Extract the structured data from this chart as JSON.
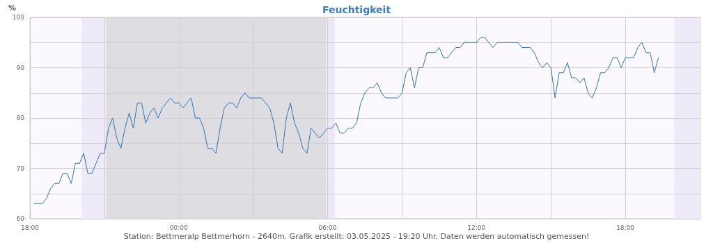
{
  "chart_data": {
    "type": "line",
    "title": "Feuchtigkeit",
    "ylabel": "%",
    "annotations": [
      "Station: Bettmeralp Bettmerhorn - 2640m. Grafik erstellt: 03.05.2025 - 19:20 Uhr. Daten werden automatisch gemessen!"
    ],
    "x": [
      "2025-05-02T18:10",
      "2025-05-02T18:20",
      "2025-05-02T18:30",
      "2025-05-02T18:40",
      "2025-05-02T18:50",
      "2025-05-02T19:00",
      "2025-05-02T19:10",
      "2025-05-02T19:20",
      "2025-05-02T19:30",
      "2025-05-02T19:40",
      "2025-05-02T19:50",
      "2025-05-02T20:00",
      "2025-05-02T20:10",
      "2025-05-02T20:20",
      "2025-05-02T20:30",
      "2025-05-02T20:40",
      "2025-05-02T20:50",
      "2025-05-02T21:00",
      "2025-05-02T21:10",
      "2025-05-02T21:20",
      "2025-05-02T21:30",
      "2025-05-02T21:40",
      "2025-05-02T21:50",
      "2025-05-02T22:00",
      "2025-05-02T22:10",
      "2025-05-02T22:20",
      "2025-05-02T22:30",
      "2025-05-02T22:40",
      "2025-05-02T22:50",
      "2025-05-02T23:00",
      "2025-05-02T23:10",
      "2025-05-02T23:20",
      "2025-05-02T23:30",
      "2025-05-02T23:40",
      "2025-05-02T23:50",
      "2025-05-03T00:00",
      "2025-05-03T00:10",
      "2025-05-03T00:20",
      "2025-05-03T00:30",
      "2025-05-03T00:40",
      "2025-05-03T00:50",
      "2025-05-03T01:00",
      "2025-05-03T01:10",
      "2025-05-03T01:20",
      "2025-05-03T01:30",
      "2025-05-03T01:40",
      "2025-05-03T01:50",
      "2025-05-03T02:00",
      "2025-05-03T02:10",
      "2025-05-03T02:20",
      "2025-05-03T02:30",
      "2025-05-03T02:40",
      "2025-05-03T02:50",
      "2025-05-03T03:00",
      "2025-05-03T03:10",
      "2025-05-03T03:20",
      "2025-05-03T03:30",
      "2025-05-03T03:40",
      "2025-05-03T03:50",
      "2025-05-03T04:00",
      "2025-05-03T04:10",
      "2025-05-03T04:20",
      "2025-05-03T04:30",
      "2025-05-03T04:40",
      "2025-05-03T04:50",
      "2025-05-03T05:00",
      "2025-05-03T05:10",
      "2025-05-03T05:20",
      "2025-05-03T05:30",
      "2025-05-03T05:40",
      "2025-05-03T05:50",
      "2025-05-03T06:00",
      "2025-05-03T06:10",
      "2025-05-03T06:20",
      "2025-05-03T06:30",
      "2025-05-03T06:40",
      "2025-05-03T06:50",
      "2025-05-03T07:00",
      "2025-05-03T07:10",
      "2025-05-03T07:20",
      "2025-05-03T07:30",
      "2025-05-03T07:40",
      "2025-05-03T07:50",
      "2025-05-03T08:00",
      "2025-05-03T08:10",
      "2025-05-03T08:20",
      "2025-05-03T08:30",
      "2025-05-03T08:40",
      "2025-05-03T08:50",
      "2025-05-03T09:00",
      "2025-05-03T09:10",
      "2025-05-03T09:20",
      "2025-05-03T09:30",
      "2025-05-03T09:40",
      "2025-05-03T09:50",
      "2025-05-03T10:00",
      "2025-05-03T10:10",
      "2025-05-03T10:20",
      "2025-05-03T10:30",
      "2025-05-03T10:40",
      "2025-05-03T10:50",
      "2025-05-03T11:00",
      "2025-05-03T11:10",
      "2025-05-03T11:20",
      "2025-05-03T11:30",
      "2025-05-03T11:40",
      "2025-05-03T11:50",
      "2025-05-03T12:00",
      "2025-05-03T12:10",
      "2025-05-03T12:20",
      "2025-05-03T12:30",
      "2025-05-03T12:40",
      "2025-05-03T12:50",
      "2025-05-03T13:00",
      "2025-05-03T13:10",
      "2025-05-03T13:20",
      "2025-05-03T13:30",
      "2025-05-03T13:40",
      "2025-05-03T13:50",
      "2025-05-03T14:00",
      "2025-05-03T14:10",
      "2025-05-03T14:20",
      "2025-05-03T14:30",
      "2025-05-03T14:40",
      "2025-05-03T14:50",
      "2025-05-03T15:00",
      "2025-05-03T15:10",
      "2025-05-03T15:20",
      "2025-05-03T15:30",
      "2025-05-03T15:40",
      "2025-05-03T15:50",
      "2025-05-03T16:00",
      "2025-05-03T16:10",
      "2025-05-03T16:20",
      "2025-05-03T16:30",
      "2025-05-03T16:40",
      "2025-05-03T16:50",
      "2025-05-03T17:00",
      "2025-05-03T17:10",
      "2025-05-03T17:20",
      "2025-05-03T17:30",
      "2025-05-03T17:40",
      "2025-05-03T17:50",
      "2025-05-03T18:00",
      "2025-05-03T18:10",
      "2025-05-03T18:20",
      "2025-05-03T18:30",
      "2025-05-03T18:40",
      "2025-05-03T18:50",
      "2025-05-03T19:00",
      "2025-05-03T19:10",
      "2025-05-03T19:20"
    ],
    "series": [
      {
        "color": "#2f73b6",
        "values": [
          63,
          63,
          63,
          64,
          66,
          67,
          67,
          69,
          69,
          67,
          71,
          71,
          73,
          69,
          69,
          71,
          73,
          73,
          78,
          80,
          76,
          74,
          78,
          81,
          78,
          83,
          83,
          79,
          81,
          82,
          80,
          82,
          83,
          84,
          83,
          83,
          82,
          83,
          84,
          80,
          80,
          78,
          74,
          74,
          73,
          78,
          82,
          83,
          83,
          82,
          84,
          85,
          84,
          84,
          84,
          84,
          83,
          82,
          79,
          74,
          73,
          80,
          83,
          79,
          77,
          74,
          73,
          78,
          77,
          76,
          77,
          78,
          78,
          79,
          77,
          77,
          78,
          78,
          79,
          83,
          85,
          86,
          86,
          87,
          85,
          84,
          84,
          84,
          84,
          85,
          89,
          90,
          86,
          90,
          90,
          93,
          93,
          93,
          94,
          92,
          92,
          93,
          94,
          94,
          95,
          95,
          95,
          95,
          96,
          96,
          95,
          94,
          95,
          95,
          95,
          95,
          95,
          95,
          94,
          94,
          94,
          93,
          91,
          90,
          91,
          90,
          84,
          89,
          89,
          91,
          88,
          88,
          87,
          88,
          85,
          84,
          86,
          89,
          89,
          90,
          92,
          92,
          90,
          92,
          92,
          92,
          94,
          95,
          93,
          93,
          89,
          92
        ]
      }
    ],
    "xlim": [
      "2025-05-02T18:00",
      "2025-05-03T21:00"
    ],
    "xticks": [
      {
        "value": "2025-05-02T18:00",
        "label": "18:00"
      },
      {
        "value": "2025-05-02T21:00",
        "label": null
      },
      {
        "value": "2025-05-03T00:00",
        "label": "00:00"
      },
      {
        "value": "2025-05-03T03:00",
        "label": null
      },
      {
        "value": "2025-05-03T06:00",
        "label": "06:00"
      },
      {
        "value": "2025-05-03T09:00",
        "label": null
      },
      {
        "value": "2025-05-03T12:00",
        "label": "12:00"
      },
      {
        "value": "2025-05-03T15:00",
        "label": null
      },
      {
        "value": "2025-05-03T18:00",
        "label": "18:00"
      },
      {
        "value": "2025-05-03T21:00",
        "label": null
      }
    ],
    "ylim": [
      60,
      100
    ],
    "yticks": [
      60,
      {
        "value": 65,
        "label": null
      },
      70,
      {
        "value": 75,
        "label": null
      },
      80,
      {
        "value": 85,
        "label": null
      },
      90,
      {
        "value": 95,
        "label": null
      },
      100
    ],
    "bands": [
      {
        "axis": "x",
        "from": "2025-05-02T20:05",
        "to": "2025-05-02T21:04",
        "color": "#efeaf8"
      },
      {
        "axis": "x",
        "from": "2025-05-02T21:04",
        "to": "2025-05-03T05:56",
        "color": "#dedde2"
      },
      {
        "axis": "x",
        "from": "2025-05-03T05:56",
        "to": "2025-05-03T06:17",
        "color": "#ebe7f6"
      },
      {
        "axis": "x",
        "from": "2025-05-03T19:58",
        "to": "2025-05-03T21:00",
        "color": "#efeaf8"
      }
    ],
    "grid": true,
    "marker": "none",
    "line_style": "solid"
  }
}
